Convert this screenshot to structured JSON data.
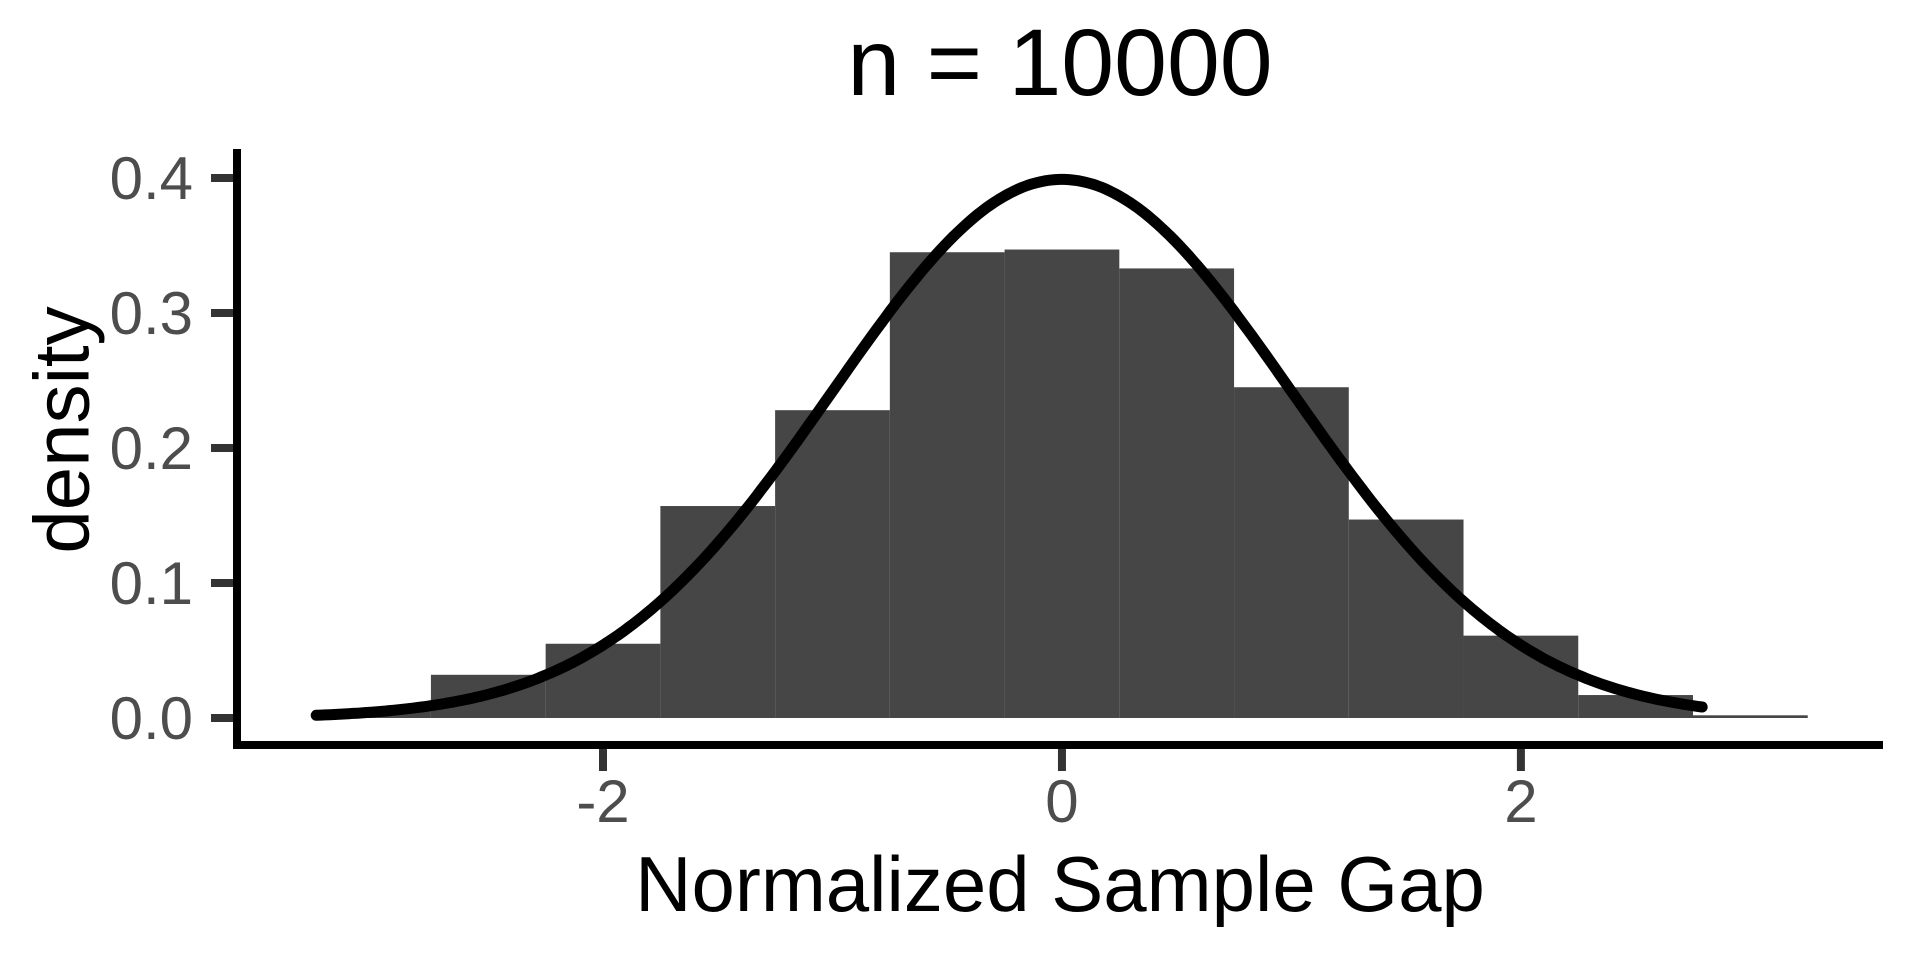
{
  "chart_data": {
    "type": "bar",
    "subtype": "histogram-with-density-curve",
    "title": "n = 10000",
    "xlabel": "Normalized Sample Gap",
    "ylabel": "density",
    "bin_width": 0.5,
    "bin_centers": [
      -3,
      -2.5,
      -2,
      -1.5,
      -1,
      -0.5,
      0,
      0.5,
      1,
      1.5,
      2,
      2.5,
      3
    ],
    "densities": [
      0.005,
      0.032,
      0.055,
      0.157,
      0.228,
      0.345,
      0.347,
      0.333,
      0.245,
      0.147,
      0.061,
      0.017,
      0.002
    ],
    "curve": {
      "kind": "normal-pdf",
      "mean": 0,
      "sd": 1,
      "x_from": -3.25,
      "x_to": 2.79,
      "peak": 0.3989
    },
    "x_ticks": {
      "values": [
        -2,
        0,
        2
      ],
      "labels": [
        "-2",
        "0",
        "2"
      ]
    },
    "y_ticks": {
      "values": [
        0,
        0.1,
        0.2,
        0.3,
        0.4
      ],
      "labels": [
        "0.0",
        "0.1",
        "0.2",
        "0.3",
        "0.4"
      ]
    },
    "xlim": [
      -3.595,
      3.578
    ],
    "ylim": [
      -0.02,
      0.4185
    ],
    "grid": "off",
    "legend": "none",
    "colors": {
      "bar": "#464646",
      "curve": "#000000",
      "axis_line": "#000000",
      "tick_mark": "#333333",
      "tick_label": "#4d4d4d",
      "title": "#000000"
    }
  }
}
